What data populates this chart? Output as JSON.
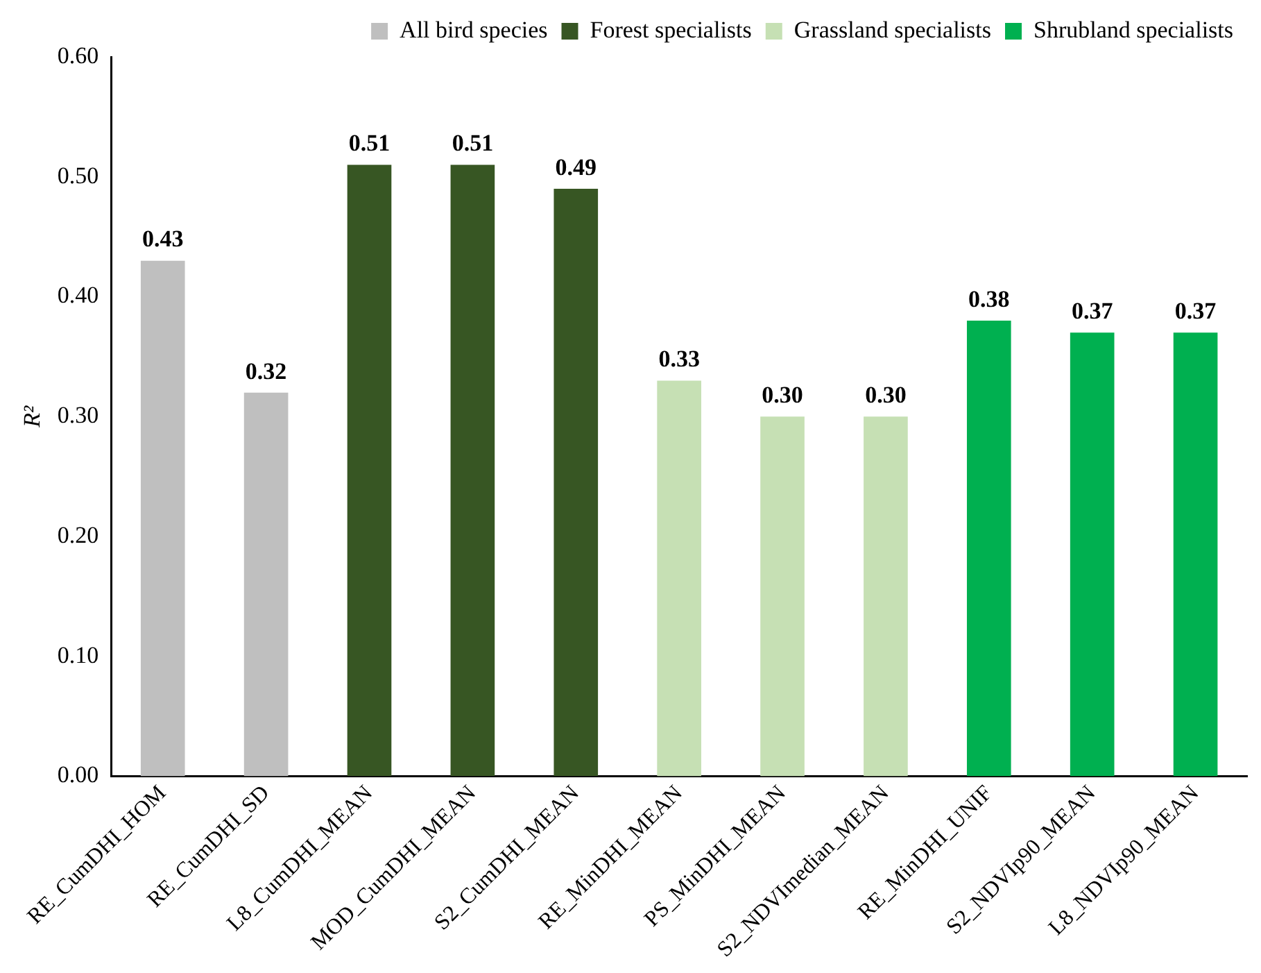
{
  "chart_data": {
    "type": "bar",
    "ylabel": "R²",
    "categories": [
      "RE_CumDHI_HOM",
      "RE_CumDHI_SD",
      "L8_CumDHI_MEAN",
      "MOD_CumDHI_MEAN",
      "S2_CumDHI_MEAN",
      "RE_MinDHI_MEAN",
      "PS_MinDHI_MEAN",
      "S2_NDVImedian_MEAN",
      "RE_MinDHI_UNIF",
      "S2_NDVIp90_MEAN",
      "L8_NDVIp90_MEAN"
    ],
    "series": [
      {
        "name": "All bird species",
        "color": "#bfbfbf",
        "values": [
          0.43,
          0.32,
          null,
          null,
          null,
          null,
          null,
          null,
          null,
          null,
          null
        ],
        "value_labels": [
          "0.43",
          "0.32",
          null,
          null,
          null,
          null,
          null,
          null,
          null,
          null,
          null
        ]
      },
      {
        "name": "Forest specialists",
        "color": "#375623",
        "values": [
          null,
          null,
          0.51,
          0.51,
          0.49,
          null,
          null,
          null,
          null,
          null,
          null
        ],
        "value_labels": [
          null,
          null,
          "0.51",
          "0.51",
          "0.49",
          null,
          null,
          null,
          null,
          null,
          null
        ]
      },
      {
        "name": "Grassland specialists",
        "color": "#c6e0b4",
        "values": [
          null,
          null,
          null,
          null,
          null,
          0.33,
          0.3,
          0.3,
          null,
          null,
          null
        ],
        "value_labels": [
          null,
          null,
          null,
          null,
          null,
          "0.33",
          "0.30",
          "0.30",
          null,
          null,
          null
        ]
      },
      {
        "name": "Shrubland specialists",
        "color": "#00b050",
        "values": [
          null,
          null,
          null,
          null,
          null,
          null,
          null,
          null,
          0.38,
          0.37,
          0.37
        ],
        "value_labels": [
          null,
          null,
          null,
          null,
          null,
          null,
          null,
          null,
          "0.38",
          "0.37",
          "0.37"
        ]
      }
    ],
    "ylim": [
      0,
      0.6
    ],
    "yticks": [
      {
        "value": 0,
        "label": "0.00"
      },
      {
        "value": 0.1,
        "label": "0.10"
      },
      {
        "value": 0.2,
        "label": "0.20"
      },
      {
        "value": 0.3,
        "label": "0.30"
      },
      {
        "value": 0.4,
        "label": "0.40"
      },
      {
        "value": 0.5,
        "label": "0.50"
      },
      {
        "value": 0.6,
        "label": "0.60"
      }
    ],
    "grid": false,
    "legend": "top right"
  }
}
